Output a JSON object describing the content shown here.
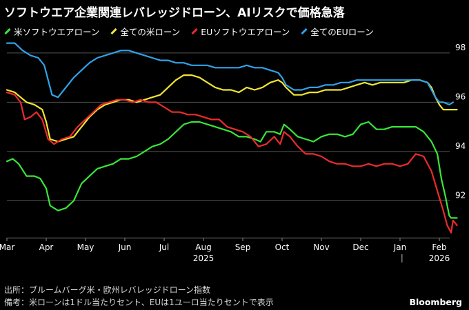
{
  "title": "ソフトウエア企業関連レバレッジドローン、AIリスクで価格急落",
  "footer": {
    "source": "出所：ブルームバーグ米・欧州レバレッジドローン指数",
    "note": "備考：米ローンは1ドル当たりセント、EUは1ユーロ当たりセントで表示",
    "brand": "Bloomberg"
  },
  "chart_data": {
    "type": "line",
    "title": "ソフトウエア企業関連レバレッジドローン、AIリスクで価格急落",
    "legend_position": "top-left",
    "grid": true,
    "ylim": [
      90.5,
      98.5
    ],
    "yticks": [
      92,
      94,
      96,
      98
    ],
    "xlim": [
      0,
      11.45
    ],
    "xticks": [
      {
        "x": 0,
        "label": "Mar"
      },
      {
        "x": 1,
        "label": "Apr"
      },
      {
        "x": 2,
        "label": "May"
      },
      {
        "x": 3,
        "label": "Jun"
      },
      {
        "x": 4,
        "label": "Jul"
      },
      {
        "x": 5,
        "label": "Aug"
      },
      {
        "x": 6,
        "label": "Sep"
      },
      {
        "x": 7,
        "label": "Oct"
      },
      {
        "x": 8,
        "label": "Nov"
      },
      {
        "x": 9,
        "label": "Dec"
      },
      {
        "x": 10,
        "label": "Jan"
      },
      {
        "x": 11,
        "label": "Feb"
      }
    ],
    "year_labels": [
      {
        "x": 5,
        "label": "2025"
      },
      {
        "x": 11,
        "label": "2026"
      }
    ],
    "year_divider_x": 10.05,
    "series": [
      {
        "name": "米ソフトウエアローン",
        "color": "#39e639",
        "points": [
          [
            0,
            93.6
          ],
          [
            0.15,
            93.7
          ],
          [
            0.3,
            93.5
          ],
          [
            0.5,
            93.0
          ],
          [
            0.7,
            93.0
          ],
          [
            0.85,
            92.9
          ],
          [
            1.0,
            92.5
          ],
          [
            1.1,
            91.8
          ],
          [
            1.3,
            91.6
          ],
          [
            1.5,
            91.7
          ],
          [
            1.7,
            92.0
          ],
          [
            1.9,
            92.7
          ],
          [
            2.1,
            93.0
          ],
          [
            2.3,
            93.3
          ],
          [
            2.5,
            93.4
          ],
          [
            2.7,
            93.5
          ],
          [
            2.9,
            93.7
          ],
          [
            3.1,
            93.7
          ],
          [
            3.3,
            93.8
          ],
          [
            3.5,
            94.0
          ],
          [
            3.7,
            94.2
          ],
          [
            3.9,
            94.3
          ],
          [
            4.1,
            94.5
          ],
          [
            4.3,
            94.8
          ],
          [
            4.5,
            95.1
          ],
          [
            4.7,
            95.2
          ],
          [
            4.9,
            95.2
          ],
          [
            5.1,
            95.1
          ],
          [
            5.3,
            95.0
          ],
          [
            5.5,
            94.9
          ],
          [
            5.7,
            94.8
          ],
          [
            5.9,
            94.6
          ],
          [
            6.1,
            94.6
          ],
          [
            6.3,
            94.5
          ],
          [
            6.45,
            94.4
          ],
          [
            6.6,
            94.8
          ],
          [
            6.8,
            94.8
          ],
          [
            6.95,
            94.7
          ],
          [
            7.05,
            95.1
          ],
          [
            7.2,
            94.9
          ],
          [
            7.4,
            94.6
          ],
          [
            7.6,
            94.5
          ],
          [
            7.8,
            94.4
          ],
          [
            8.0,
            94.6
          ],
          [
            8.2,
            94.7
          ],
          [
            8.4,
            94.7
          ],
          [
            8.6,
            94.6
          ],
          [
            8.8,
            94.7
          ],
          [
            9.0,
            95.1
          ],
          [
            9.2,
            95.2
          ],
          [
            9.4,
            94.9
          ],
          [
            9.6,
            94.9
          ],
          [
            9.8,
            95.0
          ],
          [
            10.0,
            95.0
          ],
          [
            10.2,
            95.0
          ],
          [
            10.4,
            95.0
          ],
          [
            10.6,
            94.8
          ],
          [
            10.8,
            94.4
          ],
          [
            10.95,
            93.9
          ],
          [
            11.05,
            92.9
          ],
          [
            11.15,
            92.2
          ],
          [
            11.25,
            91.4
          ],
          [
            11.3,
            91.3
          ],
          [
            11.45,
            91.3
          ]
        ]
      },
      {
        "name": "全ての米ローン",
        "color": "#f2e632",
        "points": [
          [
            0,
            96.5
          ],
          [
            0.2,
            96.4
          ],
          [
            0.35,
            96.2
          ],
          [
            0.5,
            96.0
          ],
          [
            0.7,
            95.9
          ],
          [
            0.9,
            95.7
          ],
          [
            1.0,
            95.2
          ],
          [
            1.1,
            94.5
          ],
          [
            1.3,
            94.4
          ],
          [
            1.5,
            94.5
          ],
          [
            1.7,
            94.6
          ],
          [
            1.9,
            95.0
          ],
          [
            2.1,
            95.4
          ],
          [
            2.3,
            95.7
          ],
          [
            2.5,
            95.9
          ],
          [
            2.7,
            96.0
          ],
          [
            2.9,
            96.1
          ],
          [
            3.1,
            96.1
          ],
          [
            3.3,
            96.0
          ],
          [
            3.5,
            96.1
          ],
          [
            3.7,
            96.2
          ],
          [
            3.9,
            96.3
          ],
          [
            4.1,
            96.6
          ],
          [
            4.3,
            96.9
          ],
          [
            4.5,
            97.1
          ],
          [
            4.7,
            97.1
          ],
          [
            4.9,
            97.0
          ],
          [
            5.1,
            96.8
          ],
          [
            5.3,
            96.6
          ],
          [
            5.5,
            96.5
          ],
          [
            5.7,
            96.5
          ],
          [
            5.9,
            96.4
          ],
          [
            6.1,
            96.6
          ],
          [
            6.3,
            96.5
          ],
          [
            6.5,
            96.6
          ],
          [
            6.7,
            96.8
          ],
          [
            6.9,
            96.9
          ],
          [
            7.0,
            96.8
          ],
          [
            7.1,
            96.6
          ],
          [
            7.3,
            96.3
          ],
          [
            7.5,
            96.3
          ],
          [
            7.7,
            96.4
          ],
          [
            7.9,
            96.4
          ],
          [
            8.1,
            96.5
          ],
          [
            8.3,
            96.5
          ],
          [
            8.5,
            96.5
          ],
          [
            8.7,
            96.6
          ],
          [
            8.9,
            96.7
          ],
          [
            9.1,
            96.8
          ],
          [
            9.3,
            96.7
          ],
          [
            9.5,
            96.8
          ],
          [
            9.7,
            96.8
          ],
          [
            9.9,
            96.8
          ],
          [
            10.1,
            96.8
          ],
          [
            10.3,
            96.9
          ],
          [
            10.5,
            96.9
          ],
          [
            10.7,
            96.8
          ],
          [
            10.8,
            96.6
          ],
          [
            10.9,
            96.2
          ],
          [
            11.0,
            95.9
          ],
          [
            11.1,
            95.7
          ],
          [
            11.3,
            95.7
          ],
          [
            11.45,
            95.7
          ]
        ]
      },
      {
        "name": "EUソフトウエアローン",
        "color": "#ee2b2b",
        "points": [
          [
            0,
            96.4
          ],
          [
            0.2,
            96.3
          ],
          [
            0.35,
            96.0
          ],
          [
            0.45,
            95.3
          ],
          [
            0.6,
            95.4
          ],
          [
            0.75,
            95.6
          ],
          [
            0.9,
            95.3
          ],
          [
            1.05,
            94.5
          ],
          [
            1.2,
            94.3
          ],
          [
            1.4,
            94.5
          ],
          [
            1.6,
            94.6
          ],
          [
            1.8,
            95.0
          ],
          [
            2.0,
            95.3
          ],
          [
            2.2,
            95.6
          ],
          [
            2.4,
            95.9
          ],
          [
            2.6,
            96.0
          ],
          [
            2.8,
            96.1
          ],
          [
            3.0,
            96.1
          ],
          [
            3.2,
            96.0
          ],
          [
            3.4,
            96.1
          ],
          [
            3.6,
            96.0
          ],
          [
            3.8,
            96.0
          ],
          [
            4.0,
            95.8
          ],
          [
            4.2,
            95.6
          ],
          [
            4.4,
            95.6
          ],
          [
            4.6,
            95.5
          ],
          [
            4.8,
            95.5
          ],
          [
            5.0,
            95.4
          ],
          [
            5.2,
            95.3
          ],
          [
            5.4,
            95.3
          ],
          [
            5.6,
            95.0
          ],
          [
            5.8,
            94.9
          ],
          [
            6.0,
            94.8
          ],
          [
            6.2,
            94.6
          ],
          [
            6.4,
            94.2
          ],
          [
            6.6,
            94.3
          ],
          [
            6.8,
            94.6
          ],
          [
            6.95,
            94.3
          ],
          [
            7.05,
            94.8
          ],
          [
            7.2,
            94.6
          ],
          [
            7.4,
            94.2
          ],
          [
            7.6,
            93.9
          ],
          [
            7.8,
            93.9
          ],
          [
            8.0,
            93.8
          ],
          [
            8.2,
            93.6
          ],
          [
            8.4,
            93.5
          ],
          [
            8.6,
            93.5
          ],
          [
            8.8,
            93.4
          ],
          [
            9.0,
            93.4
          ],
          [
            9.2,
            93.5
          ],
          [
            9.4,
            93.4
          ],
          [
            9.6,
            93.5
          ],
          [
            9.8,
            93.5
          ],
          [
            10.0,
            93.4
          ],
          [
            10.2,
            93.5
          ],
          [
            10.4,
            93.9
          ],
          [
            10.6,
            93.8
          ],
          [
            10.8,
            93.2
          ],
          [
            10.95,
            92.4
          ],
          [
            11.1,
            91.6
          ],
          [
            11.2,
            91.0
          ],
          [
            11.3,
            90.7
          ],
          [
            11.35,
            91.2
          ],
          [
            11.45,
            91.0
          ]
        ]
      },
      {
        "name": "全てのEUローン",
        "color": "#2fa3e8",
        "points": [
          [
            0,
            98.4
          ],
          [
            0.2,
            98.4
          ],
          [
            0.4,
            98.1
          ],
          [
            0.6,
            97.9
          ],
          [
            0.8,
            97.8
          ],
          [
            0.95,
            97.5
          ],
          [
            1.05,
            96.9
          ],
          [
            1.15,
            96.3
          ],
          [
            1.3,
            96.2
          ],
          [
            1.5,
            96.6
          ],
          [
            1.7,
            97.0
          ],
          [
            1.9,
            97.3
          ],
          [
            2.1,
            97.6
          ],
          [
            2.3,
            97.8
          ],
          [
            2.5,
            97.9
          ],
          [
            2.7,
            98.0
          ],
          [
            2.9,
            98.1
          ],
          [
            3.1,
            98.1
          ],
          [
            3.3,
            98.0
          ],
          [
            3.5,
            97.9
          ],
          [
            3.7,
            97.8
          ],
          [
            3.9,
            97.7
          ],
          [
            4.1,
            97.7
          ],
          [
            4.3,
            97.6
          ],
          [
            4.5,
            97.6
          ],
          [
            4.7,
            97.5
          ],
          [
            4.9,
            97.5
          ],
          [
            5.1,
            97.5
          ],
          [
            5.3,
            97.4
          ],
          [
            5.5,
            97.4
          ],
          [
            5.7,
            97.4
          ],
          [
            5.9,
            97.4
          ],
          [
            6.1,
            97.5
          ],
          [
            6.3,
            97.4
          ],
          [
            6.5,
            97.4
          ],
          [
            6.7,
            97.3
          ],
          [
            6.9,
            97.2
          ],
          [
            7.0,
            97.0
          ],
          [
            7.1,
            96.7
          ],
          [
            7.3,
            96.5
          ],
          [
            7.5,
            96.5
          ],
          [
            7.7,
            96.6
          ],
          [
            7.9,
            96.6
          ],
          [
            8.1,
            96.7
          ],
          [
            8.3,
            96.7
          ],
          [
            8.5,
            96.8
          ],
          [
            8.7,
            96.8
          ],
          [
            8.9,
            96.9
          ],
          [
            9.1,
            96.9
          ],
          [
            9.3,
            96.9
          ],
          [
            9.5,
            96.9
          ],
          [
            9.7,
            96.9
          ],
          [
            9.9,
            96.9
          ],
          [
            10.1,
            96.9
          ],
          [
            10.3,
            96.9
          ],
          [
            10.5,
            96.9
          ],
          [
            10.7,
            96.8
          ],
          [
            10.8,
            96.5
          ],
          [
            10.9,
            96.2
          ],
          [
            11.0,
            96.0
          ],
          [
            11.1,
            96.0
          ],
          [
            11.25,
            95.9
          ],
          [
            11.35,
            96.0
          ]
        ]
      }
    ]
  }
}
